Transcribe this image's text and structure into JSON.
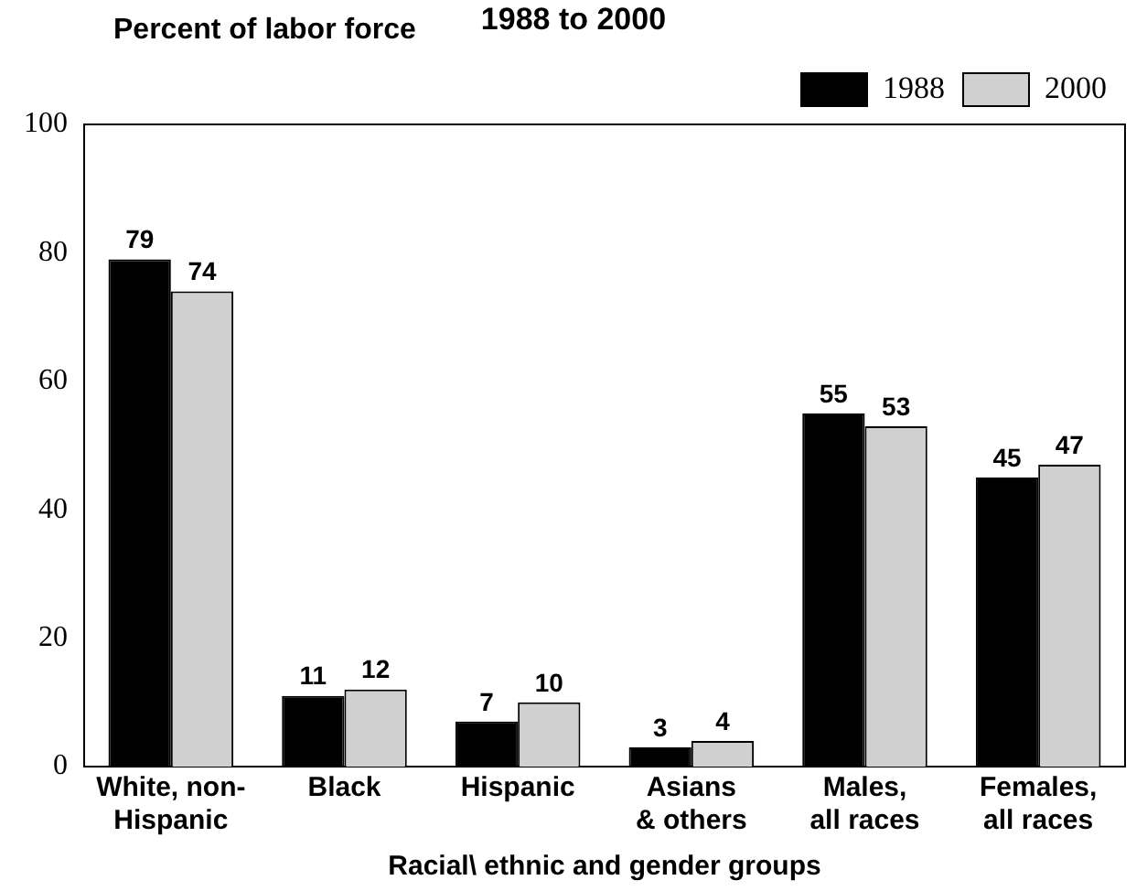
{
  "chart_data": {
    "type": "bar",
    "title": "1988 to 2000",
    "ylabel": "Percent of labor force",
    "xlabel": "Racial\\ ethnic and gender groups",
    "categories": [
      "White, non-\nHispanic",
      "Black",
      "Hispanic",
      "Asians\n& others",
      "Males,\nall races",
      "Females,\nall races"
    ],
    "series": [
      {
        "name": "1988",
        "color": "#000000",
        "values": [
          79,
          11,
          7,
          3,
          55,
          45
        ]
      },
      {
        "name": "2000",
        "color": "#d0d0d0",
        "values": [
          74,
          12,
          10,
          4,
          53,
          47
        ]
      }
    ],
    "ylim": [
      0,
      100
    ],
    "yticks": [
      0,
      20,
      40,
      60,
      80,
      100
    ],
    "grid": false,
    "legend": "top right",
    "data_labels": true
  }
}
